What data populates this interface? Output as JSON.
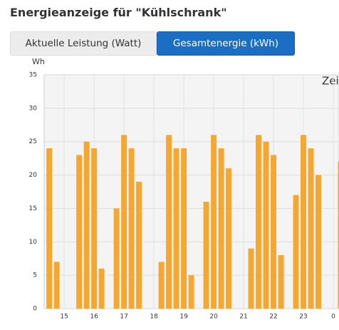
{
  "header": {
    "title": "Energieanzeige für \"Kühlschrank\""
  },
  "tabs": [
    "Aktuelle Leistung (Watt)",
    "Gesamtenergie (kWh)"
  ],
  "active_tab": 1,
  "chart_data": {
    "type": "bar",
    "y_label": "Wh",
    "x_label": "Zeit",
    "x": [
      14.5,
      14.75,
      15.5,
      15.75,
      16,
      16.25,
      16.75,
      17,
      17.25,
      17.5,
      18.25,
      18.5,
      18.75,
      19,
      19.25,
      19.75,
      20,
      20.25,
      20.5,
      21.25,
      21.5,
      21.75,
      22,
      22.25,
      22.75,
      23,
      23.25,
      23.5,
      24.25
    ],
    "values": [
      24,
      7,
      23,
      25,
      24,
      6,
      15,
      26,
      24,
      19,
      7,
      26,
      24,
      24,
      5,
      16,
      26,
      24,
      21,
      9,
      26,
      25,
      23,
      8,
      17,
      26,
      24,
      20,
      22
    ],
    "color": "#f4a731",
    "xlim": [
      14.33,
      24.19
    ],
    "ylim": [
      0,
      35
    ],
    "xticks": [
      15,
      16,
      17,
      18,
      19,
      20,
      21,
      22,
      23,
      {
        "value": 24,
        "label": "0"
      }
    ],
    "yticks": [
      0,
      5,
      10,
      15,
      20,
      25,
      30,
      35
    ],
    "grid": true
  }
}
